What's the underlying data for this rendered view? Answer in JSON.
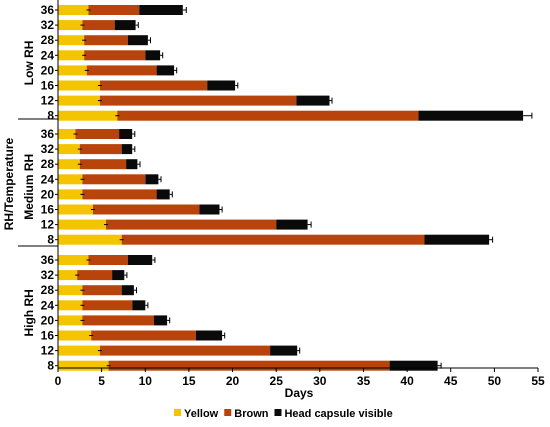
{
  "chart_data": {
    "type": "bar",
    "orientation": "horizontal",
    "stacked": true,
    "xlabel": "Days",
    "ylabel": "RH/Temperature",
    "xlim": [
      0,
      55
    ],
    "xticks": [
      0,
      5,
      10,
      15,
      20,
      25,
      30,
      35,
      40,
      45,
      50,
      55
    ],
    "legend_position": "bottom",
    "series": [
      {
        "name": "Yellow",
        "color": "#f5c400"
      },
      {
        "name": "Brown",
        "color": "#b8440c"
      },
      {
        "name": "Head capsule visible",
        "color": "#0a0a0a"
      }
    ],
    "groups": [
      {
        "label": "Low RH",
        "rows": [
          {
            "category": "36",
            "values": [
              3.5,
              5.8,
              5.0
            ],
            "error": 0.4
          },
          {
            "category": "32",
            "values": [
              2.8,
              3.7,
              2.4
            ],
            "error": 0.3
          },
          {
            "category": "28",
            "values": [
              3.0,
              5.0,
              2.3
            ],
            "error": 0.3
          },
          {
            "category": "24",
            "values": [
              3.0,
              7.0,
              1.7
            ],
            "error": 0.3
          },
          {
            "category": "20",
            "values": [
              3.3,
              8.0,
              2.0
            ],
            "error": 0.3
          },
          {
            "category": "16",
            "values": [
              4.8,
              12.3,
              3.2
            ],
            "error": 0.3
          },
          {
            "category": "12",
            "values": [
              4.8,
              22.5,
              3.8
            ],
            "error": 0.3
          },
          {
            "category": "8",
            "values": [
              6.8,
              34.5,
              12.0
            ],
            "error": 1.0
          }
        ]
      },
      {
        "label": "Medium RH",
        "rows": [
          {
            "category": "36",
            "values": [
              2.0,
              5.0,
              1.5
            ],
            "error": 0.3
          },
          {
            "category": "32",
            "values": [
              2.5,
              4.8,
              1.2
            ],
            "error": 0.3
          },
          {
            "category": "28",
            "values": [
              2.5,
              5.3,
              1.3
            ],
            "error": 0.3
          },
          {
            "category": "24",
            "values": [
              2.8,
              7.2,
              1.5
            ],
            "error": 0.3
          },
          {
            "category": "20",
            "values": [
              2.8,
              8.5,
              1.5
            ],
            "error": 0.3
          },
          {
            "category": "16",
            "values": [
              4.0,
              12.2,
              2.3
            ],
            "error": 0.3
          },
          {
            "category": "12",
            "values": [
              5.5,
              19.5,
              3.6
            ],
            "error": 0.4
          },
          {
            "category": "8",
            "values": [
              7.3,
              34.7,
              7.4
            ],
            "error": 0.4
          }
        ]
      },
      {
        "label": "High RH",
        "rows": [
          {
            "category": "36",
            "values": [
              3.5,
              4.5,
              2.8
            ],
            "error": 0.3
          },
          {
            "category": "32",
            "values": [
              2.2,
              4.0,
              1.4
            ],
            "error": 0.3
          },
          {
            "category": "28",
            "values": [
              2.8,
              4.5,
              1.4
            ],
            "error": 0.3
          },
          {
            "category": "24",
            "values": [
              2.8,
              5.7,
              1.5
            ],
            "error": 0.3
          },
          {
            "category": "20",
            "values": [
              2.8,
              8.2,
              1.5
            ],
            "error": 0.3
          },
          {
            "category": "16",
            "values": [
              3.8,
              12.0,
              3.0
            ],
            "error": 0.3
          },
          {
            "category": "12",
            "values": [
              4.8,
              19.5,
              3.1
            ],
            "error": 0.3
          },
          {
            "category": "8",
            "values": [
              5.8,
              32.2,
              5.5
            ],
            "error": 0.4
          }
        ]
      }
    ]
  }
}
